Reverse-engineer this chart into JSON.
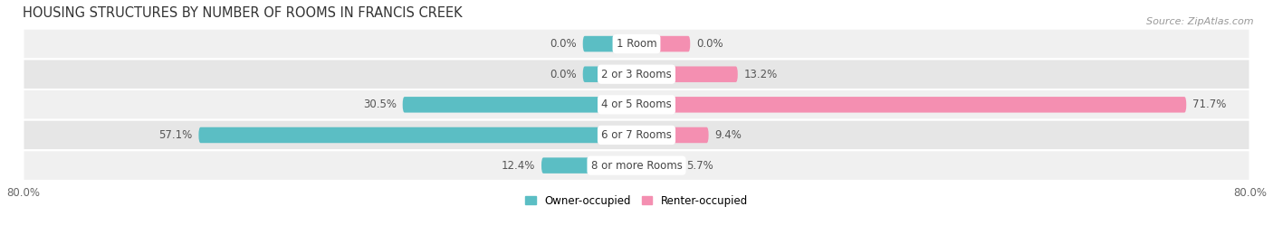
{
  "title": "HOUSING STRUCTURES BY NUMBER OF ROOMS IN FRANCIS CREEK",
  "source": "Source: ZipAtlas.com",
  "categories": [
    "1 Room",
    "2 or 3 Rooms",
    "4 or 5 Rooms",
    "6 or 7 Rooms",
    "8 or more Rooms"
  ],
  "owner_values": [
    0.0,
    0.0,
    30.5,
    57.1,
    12.4
  ],
  "renter_values": [
    0.0,
    13.2,
    71.7,
    9.4,
    5.7
  ],
  "owner_color": "#5bbec4",
  "renter_color": "#f48fb1",
  "row_colors_alt": [
    "#f0f0f0",
    "#e6e6e6"
  ],
  "xlim_left": -80,
  "xlim_right": 80,
  "title_fontsize": 10.5,
  "source_fontsize": 8,
  "label_fontsize": 8.5,
  "cat_fontsize": 8.5,
  "tick_fontsize": 8.5,
  "legend_fontsize": 8.5,
  "bar_height": 0.52,
  "stub_value": 7.0,
  "label_color": "#555555",
  "cat_label_bg": "white",
  "row_sep_color": "#cccccc"
}
